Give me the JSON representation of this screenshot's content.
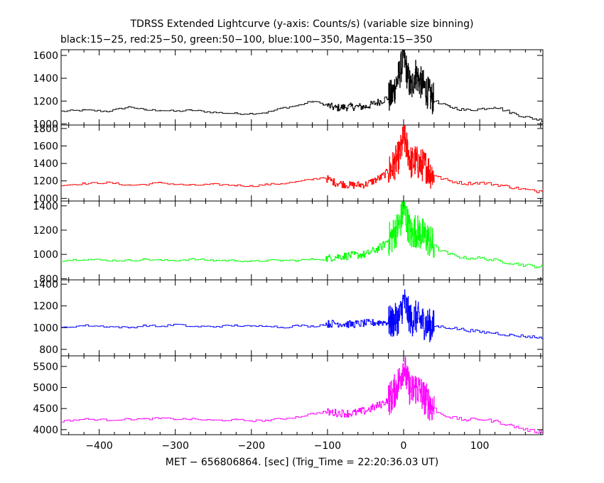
{
  "chart_data": {
    "type": "line",
    "title": "TDRSS Extended Lightcurve (y-axis: Counts/s) (variable size binning)",
    "subtitle": "black:15−25, red:25−50, green:50−100, blue:100−350, Magenta:15−350",
    "xlabel": "MET − 656806864. [sec] (Trig_Time = 22:20:36.03 UT)",
    "xlim": [
      -450,
      183
    ],
    "xticks": [
      -400,
      -300,
      -200,
      -100,
      0,
      100
    ],
    "xtick_labels": [
      "−400",
      "−300",
      "−200",
      "−100",
      "0",
      "100"
    ],
    "panels": [
      {
        "name": "15-25",
        "color": "#000000",
        "ylim": [
          990,
          1650
        ],
        "yticks": [
          1000,
          1200,
          1400,
          1600
        ],
        "ytick_labels": [
          "1000",
          "1200",
          "1400",
          "1600"
        ],
        "x": [
          -450,
          -420,
          -390,
          -360,
          -340,
          -320,
          -300,
          -280,
          -250,
          -220,
          -200,
          -180,
          -160,
          -140,
          -120,
          -105,
          -90,
          -70,
          -50,
          -30,
          -15,
          -5,
          0,
          5,
          10,
          15,
          20,
          25,
          30,
          35,
          45,
          60,
          80,
          100,
          120,
          140,
          160,
          175,
          183
        ],
        "y": [
          1110,
          1120,
          1110,
          1150,
          1120,
          1120,
          1110,
          1120,
          1100,
          1090,
          1090,
          1100,
          1140,
          1160,
          1200,
          1170,
          1140,
          1150,
          1150,
          1200,
          1250,
          1450,
          1600,
          1420,
          1300,
          1450,
          1380,
          1340,
          1290,
          1240,
          1180,
          1150,
          1120,
          1130,
          1150,
          1100,
          1060,
          1040,
          1030
        ]
      },
      {
        "name": "25-50",
        "color": "#ff0000",
        "ylim": [
          970,
          1840
        ],
        "yticks": [
          1000,
          1200,
          1400,
          1600,
          1800
        ],
        "ytick_labels": [
          "1000",
          "1200",
          "1400",
          "1600",
          "1800"
        ],
        "x": [
          -450,
          -420,
          -390,
          -360,
          -340,
          -320,
          -300,
          -280,
          -250,
          -220,
          -200,
          -180,
          -160,
          -140,
          -120,
          -105,
          -90,
          -70,
          -50,
          -30,
          -15,
          -5,
          0,
          5,
          10,
          15,
          20,
          25,
          30,
          35,
          45,
          60,
          80,
          100,
          120,
          140,
          160,
          175,
          183
        ],
        "y": [
          1150,
          1170,
          1180,
          1150,
          1160,
          1180,
          1160,
          1150,
          1160,
          1150,
          1140,
          1160,
          1170,
          1190,
          1220,
          1240,
          1180,
          1150,
          1160,
          1240,
          1350,
          1500,
          1700,
          1560,
          1400,
          1430,
          1390,
          1380,
          1360,
          1300,
          1240,
          1200,
          1170,
          1180,
          1160,
          1130,
          1100,
          1080,
          1100
        ]
      },
      {
        "name": "50-100",
        "color": "#00ff00",
        "ylim": [
          790,
          1440
        ],
        "yticks": [
          800,
          1000,
          1200,
          1400
        ],
        "ytick_labels": [
          "800",
          "1000",
          "1200",
          "1400"
        ],
        "x": [
          -450,
          -420,
          -390,
          -360,
          -340,
          -320,
          -300,
          -280,
          -250,
          -220,
          -200,
          -180,
          -160,
          -140,
          -120,
          -105,
          -90,
          -70,
          -50,
          -30,
          -15,
          -5,
          0,
          5,
          10,
          15,
          20,
          25,
          30,
          35,
          45,
          60,
          80,
          100,
          120,
          140,
          160,
          175,
          183
        ],
        "y": [
          950,
          960,
          950,
          950,
          960,
          950,
          950,
          960,
          950,
          950,
          940,
          950,
          950,
          950,
          960,
          960,
          980,
          990,
          1000,
          1060,
          1150,
          1250,
          1380,
          1260,
          1150,
          1200,
          1180,
          1160,
          1140,
          1100,
          1040,
          1000,
          970,
          970,
          950,
          930,
          910,
          900,
          900
        ]
      },
      {
        "name": "100-350",
        "color": "#0000ff",
        "ylim": [
          740,
          1440
        ],
        "yticks": [
          800,
          1000,
          1200,
          1400
        ],
        "ytick_labels": [
          "800",
          "1000",
          "1200",
          "1400"
        ],
        "x": [
          -450,
          -420,
          -390,
          -360,
          -340,
          -320,
          -300,
          -280,
          -250,
          -220,
          -200,
          -180,
          -160,
          -140,
          -120,
          -105,
          -90,
          -70,
          -50,
          -30,
          -15,
          -5,
          0,
          5,
          10,
          15,
          20,
          25,
          30,
          35,
          45,
          60,
          80,
          100,
          120,
          140,
          160,
          175,
          183
        ],
        "y": [
          1000,
          1020,
          1010,
          1000,
          1020,
          1010,
          1030,
          1010,
          1010,
          1020,
          1010,
          1020,
          1000,
          1020,
          1010,
          1030,
          1040,
          1030,
          1040,
          1050,
          1050,
          1100,
          1250,
          1150,
          1060,
          1100,
          1080,
          1050,
          1030,
          1020,
          1010,
          1000,
          980,
          960,
          950,
          930,
          920,
          910,
          900
        ]
      },
      {
        "name": "15-350",
        "color": "#ff00ff",
        "ylim": [
          3880,
          5750
        ],
        "yticks": [
          4000,
          4500,
          5000,
          5500
        ],
        "ytick_labels": [
          "4000",
          "4500",
          "5000",
          "5500"
        ],
        "x": [
          -450,
          -420,
          -390,
          -360,
          -340,
          -320,
          -300,
          -280,
          -250,
          -220,
          -200,
          -180,
          -160,
          -140,
          -120,
          -105,
          -90,
          -70,
          -50,
          -30,
          -15,
          -5,
          0,
          5,
          10,
          15,
          20,
          25,
          30,
          35,
          45,
          60,
          80,
          100,
          120,
          140,
          160,
          175,
          183
        ],
        "y": [
          4200,
          4250,
          4230,
          4250,
          4250,
          4270,
          4250,
          4250,
          4220,
          4230,
          4210,
          4220,
          4260,
          4300,
          4380,
          4420,
          4400,
          4380,
          4450,
          4600,
          4800,
          5200,
          5550,
          5100,
          4900,
          5000,
          4950,
          4800,
          4700,
          4600,
          4400,
          4300,
          4230,
          4250,
          4200,
          4100,
          4000,
          3950,
          3950
        ]
      }
    ],
    "grid": false,
    "legend": "none"
  }
}
